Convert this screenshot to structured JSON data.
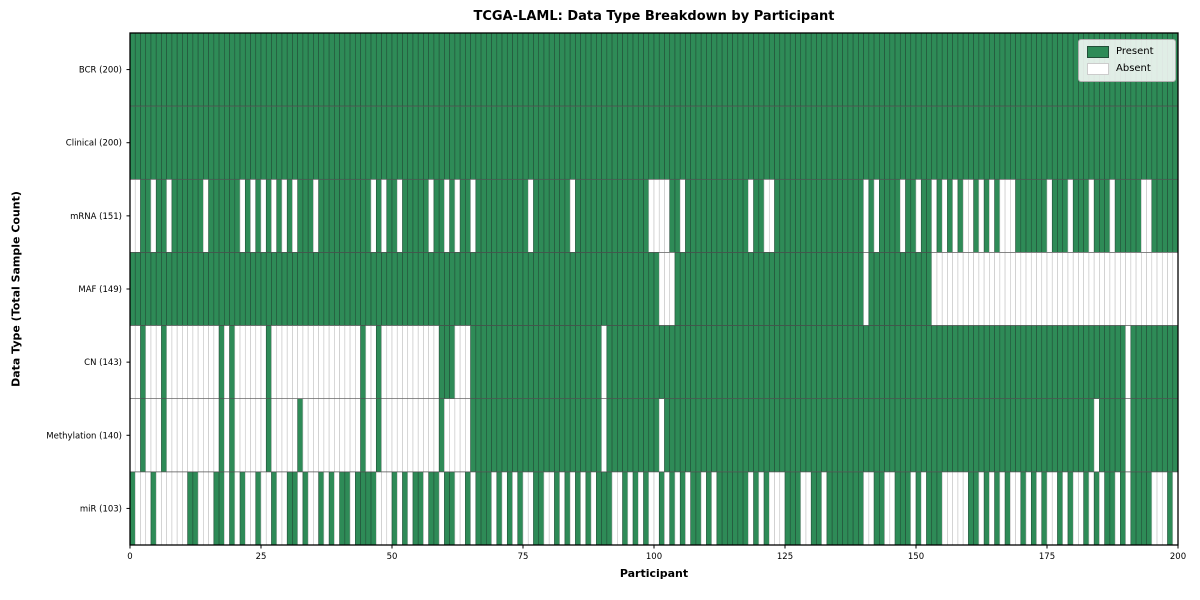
{
  "chart_data": {
    "type": "heatmap",
    "title": "TCGA-LAML: Data Type Breakdown by Participant",
    "xlabel": "Participant",
    "ylabel": "Data Type (Total Sample Count)",
    "n_participants": 200,
    "x_range": [
      0,
      200
    ],
    "x_ticks": [
      0,
      25,
      50,
      75,
      100,
      125,
      150,
      175,
      200
    ],
    "grid": false,
    "legend_position": "upper right",
    "colors": {
      "present": "#2e8b57",
      "absent": "#ffffff",
      "present_edge": "#224f38",
      "absent_edge": "#c2c2c2",
      "row_separator": "#555555",
      "plot_border": "#000000"
    },
    "legend": [
      {
        "label": "Present",
        "color": "#2e8b57"
      },
      {
        "label": "Absent",
        "color": "#ffffff"
      }
    ],
    "rows": [
      {
        "name": "BCR",
        "label": "BCR (200)",
        "present_count": 200,
        "absent": []
      },
      {
        "name": "Clinical",
        "label": "Clinical (200)",
        "present_count": 200,
        "absent": []
      },
      {
        "name": "mRNA",
        "label": "mRNA (151)",
        "present_count": 151,
        "absent": [
          0,
          1,
          4,
          7,
          14,
          21,
          23,
          25,
          27,
          29,
          31,
          35,
          46,
          48,
          51,
          57,
          60,
          62,
          65,
          76,
          84,
          99,
          100,
          101,
          102,
          105,
          118,
          121,
          122,
          140,
          142,
          147,
          150,
          153,
          155,
          157,
          159,
          160,
          162,
          164,
          166,
          167,
          168,
          175,
          179,
          183,
          187,
          193,
          194
        ]
      },
      {
        "name": "MAF",
        "label": "MAF (149)",
        "present_count": 149,
        "absent": [
          101,
          102,
          103,
          140,
          153,
          154,
          155,
          156,
          157,
          158,
          159,
          160,
          161,
          162,
          163,
          164,
          165,
          166,
          167,
          168,
          169,
          170,
          171,
          172,
          173,
          174,
          175,
          176,
          177,
          178,
          179,
          180,
          181,
          182,
          183,
          184,
          185,
          186,
          187,
          188,
          189,
          190,
          191,
          192,
          193,
          194,
          195,
          196,
          197,
          198,
          199
        ]
      },
      {
        "name": "CN",
        "label": "CN (143)",
        "present_count": 143,
        "absent": [
          0,
          1,
          3,
          4,
          5,
          7,
          8,
          9,
          10,
          11,
          12,
          13,
          14,
          15,
          16,
          18,
          20,
          21,
          22,
          23,
          24,
          25,
          27,
          28,
          29,
          30,
          31,
          32,
          33,
          34,
          35,
          36,
          37,
          38,
          39,
          40,
          41,
          42,
          43,
          45,
          46,
          48,
          49,
          50,
          51,
          52,
          53,
          54,
          55,
          56,
          57,
          58,
          62,
          63,
          64,
          90,
          190
        ]
      },
      {
        "name": "Methylation",
        "label": "Methylation (140)",
        "present_count": 140,
        "absent": [
          0,
          1,
          3,
          4,
          5,
          7,
          8,
          9,
          10,
          11,
          12,
          13,
          14,
          15,
          16,
          18,
          20,
          21,
          22,
          23,
          24,
          25,
          27,
          28,
          29,
          30,
          31,
          33,
          34,
          35,
          36,
          37,
          38,
          39,
          40,
          41,
          42,
          43,
          45,
          46,
          48,
          49,
          50,
          51,
          52,
          53,
          54,
          55,
          56,
          57,
          58,
          60,
          61,
          62,
          63,
          64,
          90,
          101,
          184,
          190
        ]
      },
      {
        "name": "miR",
        "label": "miR (103)",
        "present_count": 103,
        "absent": [
          1,
          2,
          3,
          5,
          6,
          7,
          8,
          9,
          10,
          13,
          14,
          15,
          18,
          20,
          22,
          23,
          25,
          26,
          28,
          29,
          32,
          34,
          35,
          37,
          39,
          42,
          47,
          48,
          49,
          51,
          53,
          56,
          59,
          62,
          63,
          65,
          69,
          71,
          73,
          75,
          76,
          79,
          80,
          82,
          84,
          86,
          88,
          92,
          93,
          95,
          97,
          99,
          100,
          102,
          104,
          106,
          109,
          111,
          118,
          120,
          122,
          123,
          124,
          128,
          129,
          132,
          140,
          141,
          144,
          145,
          149,
          151,
          155,
          156,
          157,
          158,
          159,
          162,
          164,
          166,
          168,
          169,
          171,
          173,
          175,
          176,
          178,
          180,
          181,
          183,
          185,
          188,
          190,
          195,
          196,
          197,
          199
        ]
      }
    ]
  }
}
